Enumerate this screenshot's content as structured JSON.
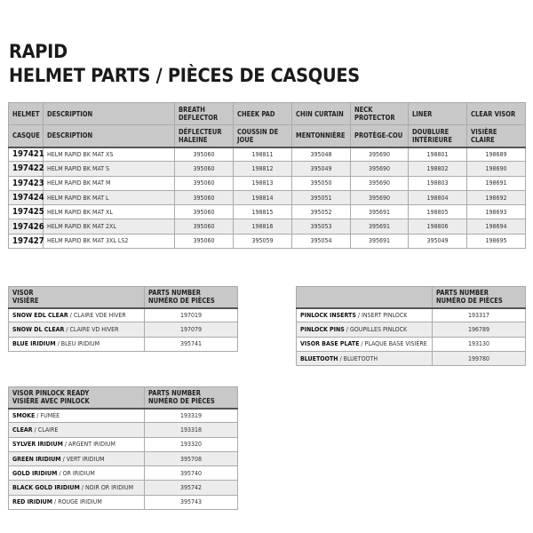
{
  "title": {
    "line1": "RAPID",
    "line2": "HELMET PARTS / PIÈCES DE CASQUES"
  },
  "main": {
    "headers_en": [
      "HELMET",
      "DESCRIPTION",
      "BREATH DEFLECTOR",
      "CHEEK PAD",
      "CHIN CURTAIN",
      "NECK PROTECTOR",
      "LINER",
      "CLEAR VISOR"
    ],
    "headers_fr": [
      "CASQUE",
      "DESCRIPTION",
      "DÉFLECTEUR HALEINE",
      "COUSSIN DE JOUE",
      "MENTONNIÈRE",
      "PROTÈGE-COU",
      "DOUBLURE INTÉRIEURE",
      "VISIÈRE CLAIRE"
    ],
    "rows": [
      [
        "197421",
        "HELM RAPID BK MAT XS",
        "395060",
        "198811",
        "395048",
        "395690",
        "198801",
        "198689"
      ],
      [
        "197422",
        "HELM RAPID BK MAT S",
        "395060",
        "198812",
        "395049",
        "395690",
        "198802",
        "198690"
      ],
      [
        "197423",
        "HELM RAPID BK MAT M",
        "395060",
        "198813",
        "395050",
        "395690",
        "198803",
        "198691"
      ],
      [
        "197424",
        "HELM RAPID BK MAT L",
        "395060",
        "198814",
        "395051",
        "395690",
        "198804",
        "198692"
      ],
      [
        "197425",
        "HELM RAPID BK MAT XL",
        "395060",
        "198815",
        "395052",
        "395691",
        "198805",
        "198693"
      ],
      [
        "197426",
        "HELM RAPID BK MAT 2XL",
        "395060",
        "198816",
        "395053",
        "395691",
        "198806",
        "198694"
      ],
      [
        "197427",
        "HELM RAPID BK MAT 3XL LS2",
        "395060",
        "395059",
        "395054",
        "395691",
        "395049",
        "198695"
      ]
    ]
  },
  "visor": {
    "header": [
      "VISOR",
      "VISIÈRE"
    ],
    "parts_header": [
      "PARTS NUMBER",
      "NUMÉRO DE PIÈCES"
    ],
    "rows": [
      {
        "en": "SNOW EDL CLEAR",
        "fr": "CLAIRE VDE HIVER",
        "part": "197019"
      },
      {
        "en": "SNOW DL CLEAR",
        "fr": "CLAIRE VD HIVER",
        "part": "197079"
      },
      {
        "en": "BLUE IRIDIUM",
        "fr": "BLEU IRIDIUM",
        "part": "395741"
      }
    ]
  },
  "accessories": {
    "header": [
      "",
      ""
    ],
    "parts_header": [
      "PARTS NUMBER",
      "NUMÉRO DE PIÈCES"
    ],
    "rows": [
      {
        "en": "PINLOCK INSERTS",
        "fr": "INSERT PINLOCK",
        "part": "193317"
      },
      {
        "en": "PINLOCK PINS",
        "fr": "GOUPILLES PINLOCK",
        "part": "196789"
      },
      {
        "en": "VISOR BASE PLATE",
        "fr": "PLAQUE BASE VISIÈRE",
        "part": "193130"
      },
      {
        "en": "BLUETOOTH",
        "fr": "BLUETOOTH",
        "part": "199780"
      }
    ]
  },
  "pinlock": {
    "header": [
      "VISOR PINLOCK READY",
      "VISIÈRE AVEC PINLOCK"
    ],
    "parts_header": [
      "PARTS NUMBER",
      "NUMÉRO DE PIÈCES"
    ],
    "rows": [
      {
        "en": "SMOKE",
        "fr": "FUMÉE",
        "part": "193319"
      },
      {
        "en": "CLEAR",
        "fr": "CLAIRE",
        "part": "193318"
      },
      {
        "en": "SYLVER IRIDIUM",
        "fr": "ARGENT IRIDIUM",
        "part": "193320"
      },
      {
        "en": "GREEN IRIDIUM",
        "fr": "VERT IRIDIUM",
        "part": "395708"
      },
      {
        "en": "GOLD IRIDIUM",
        "fr": "OR IRIDIUM",
        "part": "395740"
      },
      {
        "en": "BLACK GOLD IRIDIUM",
        "fr": "NOIR OR IRIDIUM",
        "part": "395742"
      },
      {
        "en": "RED IRIDIUM",
        "fr": "ROUGE IRIDIUM",
        "part": "395743"
      }
    ]
  },
  "colors": {
    "header_bg": "#c8c8c8",
    "alt_row": "#ececec"
  }
}
